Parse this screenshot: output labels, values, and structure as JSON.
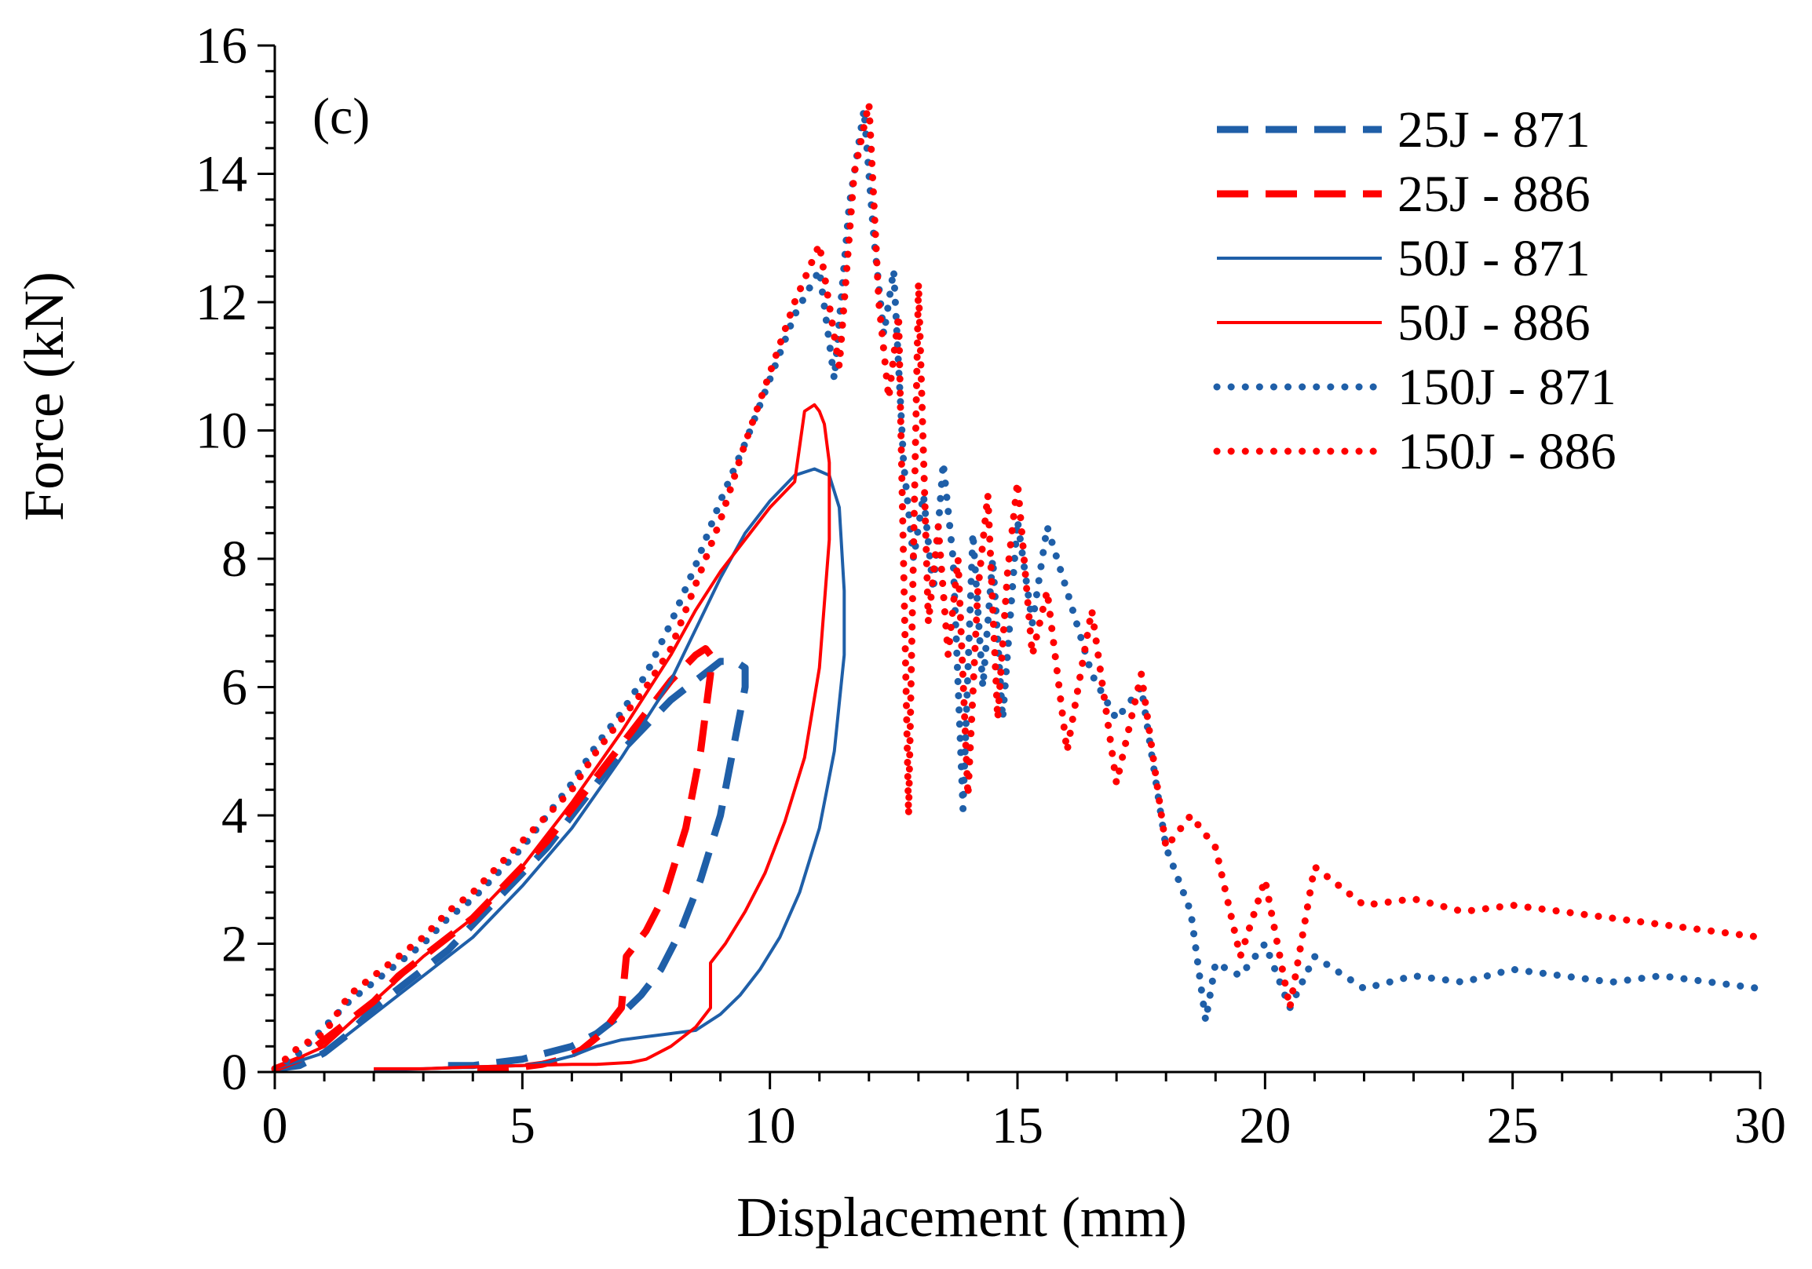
{
  "chart_data": {
    "type": "line",
    "panel_label": "(c)",
    "title": "",
    "xlabel": "Displacement (mm)",
    "ylabel": "Force (kN)",
    "xlim": [
      0,
      30
    ],
    "ylim": [
      0,
      16
    ],
    "xticks": [
      0,
      5,
      10,
      15,
      20,
      25,
      30
    ],
    "yticks": [
      0,
      2,
      4,
      6,
      8,
      10,
      12,
      14,
      16
    ],
    "grid": false,
    "legend_position": "top-right",
    "colors": {
      "blue": "#1f5fa8",
      "red": "#ff0000"
    },
    "series": [
      {
        "name": "25J - 871",
        "color": "#1f5fa8",
        "style": "dashed",
        "x": [
          0,
          0.5,
          1,
          1.5,
          2,
          2.5,
          3,
          3.5,
          4,
          4.5,
          5,
          5.5,
          6,
          6.5,
          7,
          7.5,
          8,
          8.5,
          9,
          9.3,
          9.5,
          9.5,
          9.3,
          9.0,
          8.6,
          8.2,
          7.8,
          7.4,
          7.0,
          6.5,
          6.0,
          5.5,
          5.0,
          4.5,
          4.0,
          3.5
        ],
        "y": [
          0.05,
          0.1,
          0.3,
          0.6,
          1.0,
          1.3,
          1.6,
          1.9,
          2.3,
          2.7,
          3.1,
          3.5,
          4.0,
          4.5,
          5.0,
          5.4,
          5.8,
          6.1,
          6.4,
          6.4,
          6.3,
          6.0,
          5.2,
          4.0,
          3.0,
          2.2,
          1.6,
          1.2,
          0.9,
          0.6,
          0.4,
          0.3,
          0.2,
          0.15,
          0.1,
          0.1
        ]
      },
      {
        "name": "25J - 886",
        "color": "#ff0000",
        "style": "dashed",
        "x": [
          0,
          0.5,
          1,
          1.5,
          2,
          2.5,
          3,
          3.5,
          4,
          4.5,
          5,
          5.5,
          6,
          6.5,
          7,
          7.5,
          8,
          8.5,
          8.7,
          8.8,
          8.8,
          8.6,
          8.3,
          7.9,
          7.5,
          7.1,
          7.0,
          6.6,
          6.2,
          5.8,
          5.4,
          5.0,
          4.5,
          4.0
        ],
        "y": [
          0.05,
          0.2,
          0.5,
          0.8,
          1.1,
          1.5,
          1.8,
          2.1,
          2.4,
          2.8,
          3.2,
          3.6,
          4.1,
          4.6,
          5.1,
          5.6,
          6.1,
          6.5,
          6.6,
          6.5,
          6.2,
          5.0,
          3.8,
          2.8,
          2.2,
          1.8,
          1.0,
          0.6,
          0.35,
          0.2,
          0.12,
          0.08,
          0.05,
          0.05
        ]
      },
      {
        "name": "50J - 871",
        "color": "#1f5fa8",
        "style": "solid",
        "x": [
          0,
          1,
          2,
          3,
          4,
          5,
          6,
          7,
          8,
          8.5,
          9,
          9.5,
          10,
          10.5,
          10.9,
          11.2,
          11.4,
          11.5,
          11.5,
          11.3,
          11.0,
          10.6,
          10.2,
          9.8,
          9.4,
          9.0,
          8.5,
          8.0,
          7.5,
          7.0,
          6.5,
          6.0,
          5.5,
          5.0,
          4.0,
          3.0,
          2.0
        ],
        "y": [
          0.05,
          0.3,
          0.9,
          1.5,
          2.1,
          2.9,
          3.8,
          4.9,
          6.1,
          6.9,
          7.7,
          8.4,
          8.9,
          9.3,
          9.4,
          9.3,
          8.8,
          7.5,
          6.5,
          5.0,
          3.8,
          2.8,
          2.1,
          1.6,
          1.2,
          0.9,
          0.65,
          0.6,
          0.55,
          0.5,
          0.4,
          0.25,
          0.15,
          0.1,
          0.08,
          0.05,
          0.03
        ]
      },
      {
        "name": "50J - 886",
        "color": "#ff0000",
        "style": "solid",
        "x": [
          0,
          1,
          2,
          3,
          4,
          5,
          6,
          7,
          8,
          8.5,
          9,
          9.5,
          10,
          10.5,
          10.7,
          10.9,
          11.0,
          11.1,
          11.2,
          11.2,
          11.0,
          10.7,
          10.3,
          9.9,
          9.5,
          9.1,
          8.8,
          8.8,
          8.5,
          8.0,
          7.5,
          7.2,
          6.5,
          6.0,
          5.0,
          4.0,
          3.0,
          2.0
        ],
        "y": [
          0.05,
          0.4,
          1.1,
          1.8,
          2.4,
          3.2,
          4.2,
          5.3,
          6.5,
          7.2,
          7.8,
          8.3,
          8.8,
          9.2,
          10.3,
          10.4,
          10.3,
          10.1,
          9.5,
          8.3,
          6.3,
          4.9,
          3.9,
          3.1,
          2.5,
          2.0,
          1.7,
          1.0,
          0.7,
          0.4,
          0.2,
          0.15,
          0.12,
          0.12,
          0.1,
          0.08,
          0.05,
          0.05
        ]
      },
      {
        "name": "150J - 871",
        "color": "#1f5fa8",
        "style": "dotted",
        "x": [
          0,
          0.5,
          1,
          1.5,
          2,
          2.5,
          3,
          3.5,
          4,
          4.5,
          5,
          5.5,
          6,
          6.5,
          7,
          7.5,
          8,
          8.5,
          9,
          9.5,
          10,
          10.5,
          11,
          11.3,
          11.6,
          11.9,
          12.1,
          12.3,
          12.5,
          12.7,
          12.9,
          13.1,
          13.3,
          13.5,
          13.7,
          13.9,
          14.1,
          14.3,
          14.5,
          14.7,
          15.0,
          15.3,
          15.6,
          16.0,
          16.5,
          17.0,
          17.5,
          18.0,
          18.5,
          18.8,
          19.0,
          19.5,
          20.0,
          20.5,
          21.0,
          22.0,
          23.0,
          24.0,
          25.0,
          26.0,
          27.0,
          28.0,
          29.0,
          30.0
        ],
        "y": [
          0.05,
          0.3,
          0.7,
          1.1,
          1.4,
          1.7,
          2.0,
          2.4,
          2.7,
          3.1,
          3.5,
          4.0,
          4.5,
          5.1,
          5.6,
          6.2,
          7.0,
          7.9,
          8.9,
          9.8,
          10.8,
          11.8,
          12.5,
          10.8,
          13.5,
          15.0,
          13.0,
          11.5,
          12.5,
          9.5,
          8.0,
          9.0,
          7.5,
          9.5,
          8.0,
          4.1,
          8.4,
          6.0,
          8.0,
          5.5,
          8.6,
          7.0,
          8.5,
          7.5,
          6.2,
          5.5,
          6.0,
          3.5,
          2.5,
          0.8,
          1.7,
          1.5,
          2.0,
          1.0,
          1.8,
          1.3,
          1.5,
          1.4,
          1.6,
          1.5,
          1.4,
          1.5,
          1.4,
          1.3
        ]
      },
      {
        "name": "150J - 886",
        "color": "#ff0000",
        "style": "dotted",
        "x": [
          0,
          0.5,
          1,
          1.5,
          2,
          2.5,
          3,
          3.5,
          4,
          4.5,
          5,
          5.5,
          6,
          6.5,
          7,
          7.5,
          8,
          8.5,
          9,
          9.5,
          10,
          10.5,
          11,
          11.4,
          11.7,
          12.0,
          12.2,
          12.4,
          12.6,
          12.8,
          13.0,
          13.2,
          13.4,
          13.6,
          13.8,
          14.0,
          14.2,
          14.4,
          14.6,
          14.8,
          15.0,
          15.3,
          15.6,
          16.0,
          16.5,
          17.0,
          17.5,
          18.0,
          18.5,
          19.0,
          19.5,
          20.0,
          20.5,
          21.0,
          22.0,
          23.0,
          24.0,
          25.0,
          26.0,
          27.0,
          28.0,
          29.0,
          30.0
        ],
        "y": [
          0.05,
          0.4,
          0.6,
          1.2,
          1.5,
          1.8,
          2.1,
          2.5,
          2.8,
          3.2,
          3.6,
          4.0,
          4.4,
          5.0,
          5.5,
          6.0,
          6.6,
          7.6,
          8.6,
          9.8,
          10.9,
          12.0,
          12.9,
          11.0,
          14.0,
          15.1,
          12.0,
          10.5,
          11.8,
          4.0,
          12.3,
          7.0,
          8.5,
          6.5,
          8.0,
          4.3,
          7.5,
          9.0,
          5.5,
          7.8,
          9.2,
          6.5,
          7.5,
          5.0,
          7.2,
          4.5,
          6.2,
          3.5,
          4.0,
          3.5,
          1.8,
          3.0,
          1.0,
          3.2,
          2.6,
          2.7,
          2.5,
          2.6,
          2.5,
          2.4,
          2.3,
          2.2,
          2.1
        ]
      }
    ]
  }
}
